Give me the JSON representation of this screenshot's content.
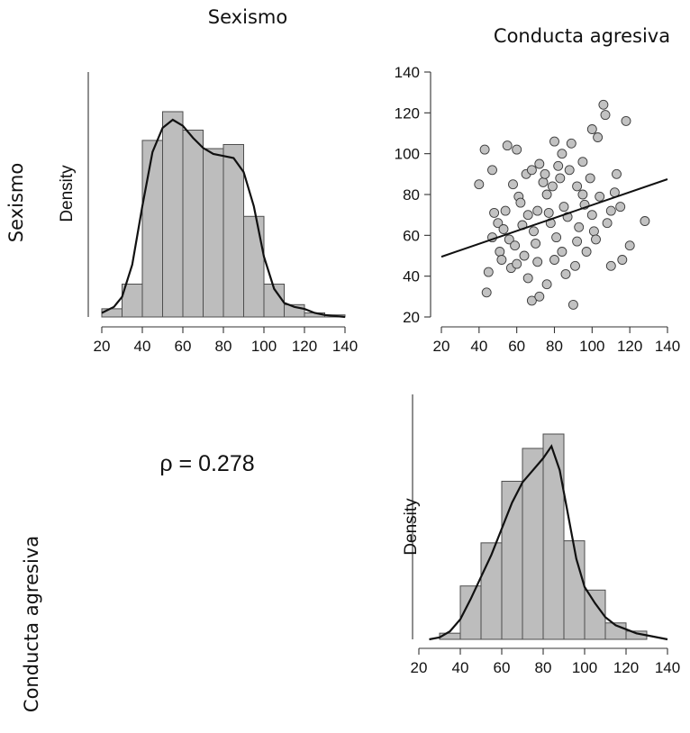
{
  "labels": {
    "col_sexismo": "Sexismo",
    "col_conducta": "Conducta agresiva",
    "row_sexismo": "Sexismo",
    "row_conducta": "Conducta agresiva"
  },
  "correlation": {
    "text": "ρ = 0.278",
    "value": 0.278
  },
  "chart_data": [
    {
      "type": "bar",
      "panel": "hist-sexismo",
      "variable": "Sexismo",
      "ylabel": "Density",
      "xlim": [
        20,
        140
      ],
      "x_ticks": [
        20,
        40,
        60,
        80,
        100,
        120,
        140
      ],
      "bins": [
        20,
        30,
        40,
        50,
        60,
        70,
        80,
        90,
        100,
        110,
        120,
        130,
        140
      ],
      "relative_heights": [
        0.04,
        0.16,
        0.86,
        1.0,
        0.91,
        0.82,
        0.84,
        0.49,
        0.16,
        0.06,
        0.02,
        0.01
      ],
      "density_curve": [
        [
          20,
          0.02
        ],
        [
          26,
          0.05
        ],
        [
          30,
          0.1
        ],
        [
          35,
          0.26
        ],
        [
          40,
          0.55
        ],
        [
          45,
          0.82
        ],
        [
          50,
          0.94
        ],
        [
          55,
          0.98
        ],
        [
          60,
          0.95
        ],
        [
          65,
          0.89
        ],
        [
          70,
          0.84
        ],
        [
          75,
          0.81
        ],
        [
          80,
          0.8
        ],
        [
          85,
          0.79
        ],
        [
          90,
          0.72
        ],
        [
          95,
          0.55
        ],
        [
          100,
          0.3
        ],
        [
          105,
          0.14
        ],
        [
          110,
          0.07
        ],
        [
          115,
          0.05
        ],
        [
          120,
          0.04
        ],
        [
          125,
          0.02
        ],
        [
          130,
          0.01
        ],
        [
          140,
          0.0
        ]
      ]
    },
    {
      "type": "scatter",
      "panel": "scatter-sexismo-conducta",
      "xlim": [
        20,
        140
      ],
      "ylim": [
        20,
        140
      ],
      "x_ticks": [
        20,
        40,
        60,
        80,
        100,
        120,
        140
      ],
      "y_ticks": [
        20,
        40,
        60,
        80,
        100,
        120,
        140
      ],
      "regression_line": {
        "x": [
          20,
          140
        ],
        "y": [
          49.5,
          87.5
        ]
      },
      "points": [
        [
          40,
          85
        ],
        [
          43,
          102
        ],
        [
          44,
          32
        ],
        [
          47,
          92
        ],
        [
          55,
          104
        ],
        [
          60,
          102
        ],
        [
          65,
          90
        ],
        [
          72,
          95
        ],
        [
          100,
          112
        ],
        [
          103,
          108
        ],
        [
          106,
          124
        ],
        [
          107,
          119
        ],
        [
          118,
          116
        ],
        [
          128,
          67
        ],
        [
          120,
          55
        ],
        [
          116,
          48
        ],
        [
          80,
          106
        ],
        [
          84,
          100
        ],
        [
          68,
          28
        ],
        [
          90,
          26
        ],
        [
          72,
          30
        ],
        [
          45,
          42
        ],
        [
          51,
          52
        ],
        [
          50,
          66
        ],
        [
          56,
          58
        ],
        [
          63,
          65
        ],
        [
          71,
          72
        ],
        [
          76,
          80
        ],
        [
          85,
          74
        ],
        [
          92,
          84
        ],
        [
          101,
          62
        ],
        [
          110,
          72
        ],
        [
          95,
          96
        ],
        [
          88,
          92
        ],
        [
          97,
          52
        ],
        [
          110,
          45
        ],
        [
          76,
          36
        ],
        [
          66,
          39
        ],
        [
          57,
          44
        ],
        [
          80,
          48
        ],
        [
          61,
          79
        ],
        [
          74,
          86
        ],
        [
          83,
          88
        ],
        [
          66,
          70
        ],
        [
          54,
          72
        ],
        [
          47,
          59
        ],
        [
          59,
          55
        ],
        [
          69,
          62
        ],
        [
          78,
          66
        ],
        [
          87,
          69
        ],
        [
          96,
          75
        ],
        [
          104,
          79
        ],
        [
          112,
          81
        ],
        [
          99,
          88
        ],
        [
          91,
          45
        ],
        [
          86,
          41
        ],
        [
          71,
          47
        ],
        [
          64,
          50
        ],
        [
          53,
          63
        ],
        [
          77,
          71
        ],
        [
          81,
          59
        ],
        [
          93,
          64
        ],
        [
          102,
          58
        ],
        [
          108,
          66
        ],
        [
          115,
          74
        ],
        [
          89,
          105
        ],
        [
          82,
          94
        ],
        [
          75,
          90
        ],
        [
          58,
          85
        ],
        [
          62,
          76
        ],
        [
          70,
          56
        ],
        [
          84,
          52
        ],
        [
          92,
          57
        ],
        [
          100,
          70
        ],
        [
          60,
          46
        ],
        [
          52,
          48
        ],
        [
          48,
          71
        ],
        [
          68,
          92
        ],
        [
          79,
          84
        ],
        [
          95,
          80
        ],
        [
          113,
          90
        ]
      ]
    },
    {
      "type": "bar",
      "panel": "hist-conducta",
      "variable": "Conducta agresiva",
      "ylabel": "Density",
      "xlim": [
        20,
        140
      ],
      "x_ticks": [
        20,
        40,
        60,
        80,
        100,
        120,
        140
      ],
      "bins": [
        30,
        40,
        50,
        60,
        70,
        80,
        90,
        100,
        110,
        120,
        130
      ],
      "relative_heights": [
        0.03,
        0.26,
        0.47,
        0.77,
        0.93,
        1.0,
        0.48,
        0.24,
        0.08,
        0.04
      ],
      "density_curve": [
        [
          25,
          0.0
        ],
        [
          30,
          0.01
        ],
        [
          35,
          0.04
        ],
        [
          40,
          0.1
        ],
        [
          45,
          0.2
        ],
        [
          50,
          0.31
        ],
        [
          55,
          0.42
        ],
        [
          60,
          0.55
        ],
        [
          65,
          0.68
        ],
        [
          70,
          0.78
        ],
        [
          75,
          0.84
        ],
        [
          80,
          0.9
        ],
        [
          84,
          0.96
        ],
        [
          88,
          0.84
        ],
        [
          92,
          0.62
        ],
        [
          96,
          0.4
        ],
        [
          100,
          0.26
        ],
        [
          105,
          0.18
        ],
        [
          110,
          0.11
        ],
        [
          115,
          0.07
        ],
        [
          120,
          0.05
        ],
        [
          125,
          0.03
        ],
        [
          130,
          0.02
        ],
        [
          140,
          0.0
        ]
      ]
    }
  ]
}
